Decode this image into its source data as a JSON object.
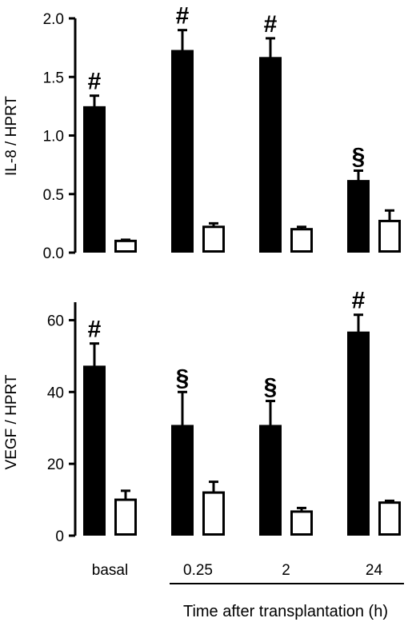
{
  "chart_data": [
    {
      "type": "bar",
      "ylabel": "IL-8 / HPRT",
      "ylim": [
        0,
        2.0
      ],
      "yticks": [
        "0.0",
        "0.5",
        "1.0",
        "1.5",
        "2.0"
      ],
      "categories": [
        "basal",
        "0.25",
        "2",
        "24"
      ],
      "series": [
        {
          "fill": "#000000",
          "values": [
            1.24,
            1.72,
            1.66,
            0.61
          ],
          "errors": [
            0.1,
            0.18,
            0.17,
            0.09
          ]
        },
        {
          "fill": "#ffffff",
          "values": [
            0.1,
            0.22,
            0.2,
            0.27
          ],
          "errors": [
            0.01,
            0.03,
            0.02,
            0.09
          ]
        }
      ],
      "annotations": [
        "#",
        "#",
        "#",
        "§"
      ]
    },
    {
      "type": "bar",
      "ylabel": "VEGF / HPRT",
      "ylim": [
        0,
        65
      ],
      "yticks": [
        "0",
        "20",
        "40",
        "60"
      ],
      "categories": [
        "basal",
        "0.25",
        "2",
        "24"
      ],
      "series": [
        {
          "fill": "#000000",
          "values": [
            47,
            30.5,
            30.5,
            56.5
          ],
          "errors": [
            6.5,
            9.5,
            7,
            5
          ]
        },
        {
          "fill": "#ffffff",
          "values": [
            10,
            12,
            6.7,
            9.2
          ],
          "errors": [
            2.5,
            3,
            1,
            0.5
          ]
        }
      ],
      "annotations": [
        "#",
        "§",
        "§",
        "#"
      ]
    }
  ],
  "x_categories": [
    "basal",
    "0.25",
    "2",
    "24"
  ],
  "xlabel": "Time after transplantation (h)"
}
